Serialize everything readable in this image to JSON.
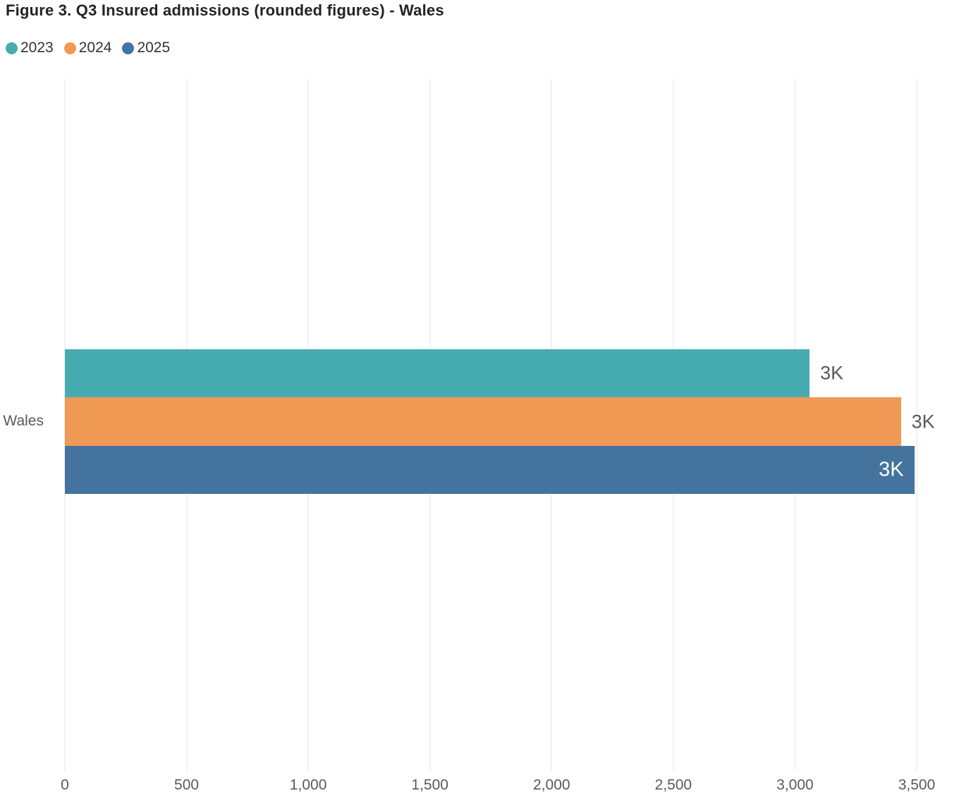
{
  "title": "Figure 3. Q3 Insured admissions (rounded figures) - Wales",
  "colors": {
    "series_2023": "#47ACB1",
    "series_2024": "#F09A55",
    "series_2025": "#44739E",
    "gridline": "#e6e6e6",
    "axis_text": "#58595B",
    "legend_text": "#333333",
    "title_text": "#222426",
    "inside_label_text": "#ffffff"
  },
  "chart_data": {
    "type": "bar",
    "orientation": "horizontal",
    "title": "Figure 3. Q3 Insured admissions (rounded figures) - Wales",
    "categories": [
      "Wales"
    ],
    "series": [
      {
        "name": "2023",
        "color": "#47ACB1",
        "values": [
          3060
        ],
        "labels": [
          "3K"
        ]
      },
      {
        "name": "2024",
        "color": "#F09A55",
        "values": [
          3435
        ],
        "labels": [
          "3K"
        ]
      },
      {
        "name": "2025",
        "color": "#44739E",
        "values": [
          3490
        ],
        "labels": [
          "3K"
        ]
      }
    ],
    "xlabel": "",
    "ylabel": "",
    "xlim": [
      0,
      3500
    ],
    "xticks": [
      0,
      500,
      1000,
      1500,
      2000,
      2500,
      3000,
      3500
    ],
    "xtick_labels": [
      "0",
      "500",
      "1,000",
      "1,500",
      "2,000",
      "2,500",
      "3,000",
      "3,500"
    ],
    "grid": "vertical",
    "legend_position": "top-left"
  }
}
